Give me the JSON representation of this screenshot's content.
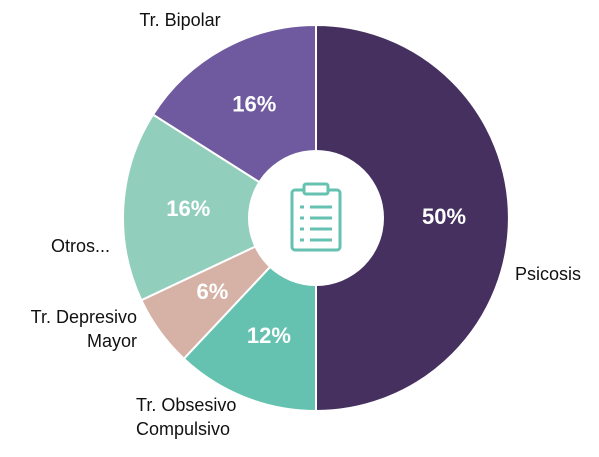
{
  "chart_data": {
    "type": "pie",
    "categories": [
      "Psicosis",
      "Tr. Obsesivo Compulsivo",
      "Tr. Depresivo Mayor",
      "Otros...",
      "Tr. Bipolar"
    ],
    "values": [
      50,
      12,
      6,
      16,
      16
    ],
    "value_labels": [
      "50%",
      "12%",
      "6%",
      "16%",
      "16%"
    ],
    "colors": [
      "#45305f",
      "#66c2b0",
      "#d6b1a5",
      "#92cebc",
      "#6f5a9f"
    ]
  }
}
